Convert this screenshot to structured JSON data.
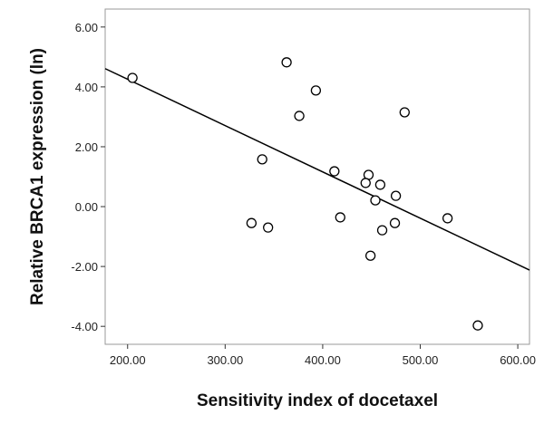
{
  "chart_data": {
    "type": "scatter",
    "x_label": "Sensitivity index of docetaxel",
    "y_label": "Relative BRCA1 expression (ln)",
    "xlim": [
      177,
      612
    ],
    "ylim": [
      -4.6,
      6.6
    ],
    "xticks": [
      {
        "value": 200,
        "label": "200.00"
      },
      {
        "value": 300,
        "label": "300.00"
      },
      {
        "value": 400,
        "label": "400.00"
      },
      {
        "value": 500,
        "label": "500.00"
      },
      {
        "value": 600,
        "label": "600.00"
      }
    ],
    "yticks": [
      {
        "value": 6,
        "label": "6.00"
      },
      {
        "value": 4,
        "label": "4.00"
      },
      {
        "value": 2,
        "label": "2.00"
      },
      {
        "value": 0,
        "label": "0.00"
      },
      {
        "value": -2,
        "label": "-2.00"
      },
      {
        "value": -4,
        "label": "-4.00"
      }
    ],
    "color": "#000000",
    "series": [
      {
        "x": [
          205,
          363,
          393,
          376,
          484,
          338,
          412,
          447,
          444,
          459,
          475,
          454,
          327,
          344,
          418,
          474,
          461,
          528,
          449,
          559
        ],
        "values": [
          4.3,
          4.82,
          3.88,
          3.03,
          3.15,
          1.58,
          1.18,
          1.06,
          0.79,
          0.73,
          0.36,
          0.21,
          -0.55,
          -0.7,
          -0.36,
          -0.55,
          -0.79,
          -0.39,
          -1.64,
          -3.97
        ]
      }
    ],
    "fit_line": {
      "x": [
        177,
        612
      ],
      "values": [
        4.61,
        -2.12
      ]
    }
  }
}
